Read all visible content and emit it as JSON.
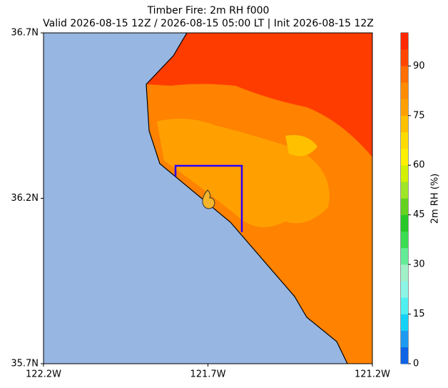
{
  "chart_data": {
    "type": "contour-map",
    "title": "Timber Fire: 2m RH f000",
    "subtitle": "Valid 2026-08-15 12Z / 2026-08-15 05:00 LT | Init 2026-08-15 12Z",
    "xlim": [
      -122.2,
      -121.2
    ],
    "xticks": [
      {
        "value": -122.2,
        "label": "122.2W"
      },
      {
        "value": -121.7,
        "label": "121.7W"
      },
      {
        "value": -121.2,
        "label": "121.2W"
      }
    ],
    "ylim": [
      35.7,
      36.7
    ],
    "yticks": [
      {
        "value": 35.7,
        "label": "35.7N"
      },
      {
        "value": 36.2,
        "label": "36.2N"
      },
      {
        "value": 36.7,
        "label": "36.7N"
      }
    ],
    "colorbar": {
      "label": "2m RH (%)",
      "lim": [
        0,
        100
      ],
      "ticks": [
        0,
        15,
        30,
        45,
        60,
        75,
        90
      ],
      "colors": [
        "#0f64e6",
        "#1e9bf0",
        "#14d2f5",
        "#50f0f0",
        "#8cf5e6",
        "#a0f0c8",
        "#64eb96",
        "#3cdc50",
        "#28c828",
        "#64d21e",
        "#a0e628",
        "#d2f000",
        "#fff000",
        "#ffdc00",
        "#ffc000",
        "#ffa000",
        "#ff8c00",
        "#ff6e00",
        "#ff4600",
        "#ff2800"
      ]
    }
  }
}
